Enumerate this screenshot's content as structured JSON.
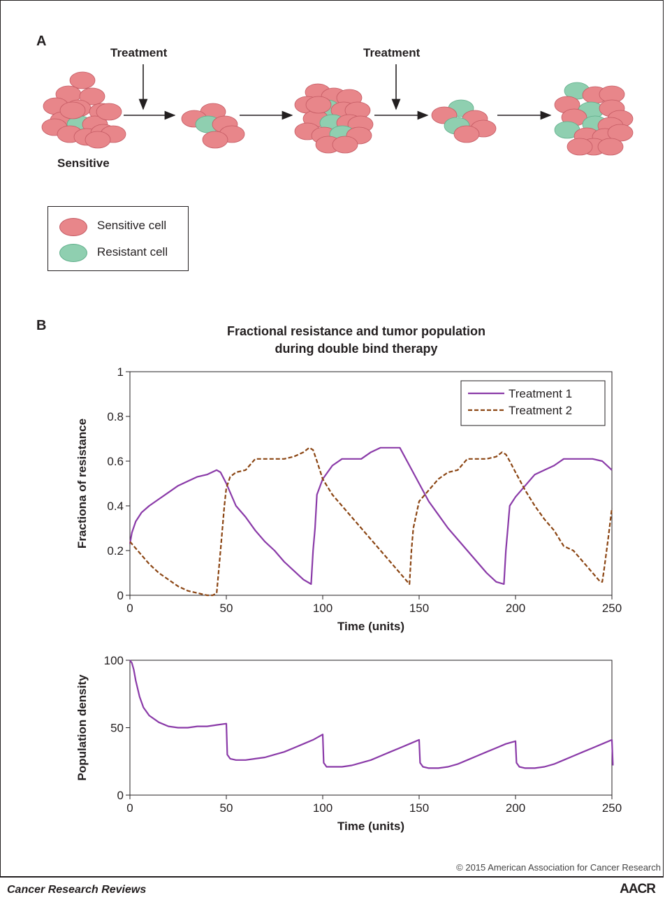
{
  "panel_a": {
    "letter": "A",
    "treatment_label_1": "Treatment",
    "treatment_label_2": "Treatment",
    "sensitive_label": "Sensitive",
    "legend": {
      "sensitive_cell": "Sensitive cell",
      "resistant_cell": "Resistant cell"
    },
    "colors": {
      "sensitive": "#e8868a",
      "resistant": "#8fcfb0",
      "outline": "#c45a63"
    }
  },
  "panel_b": {
    "letter": "B",
    "title_line1": "Fractional resistance and tumor population",
    "title_line2": "during double bind therapy"
  },
  "chart_data": [
    {
      "type": "line",
      "title": "Fractional resistance and tumor population during double bind therapy",
      "xlabel": "Time (units)",
      "ylabel": "Fractiona of resistance",
      "xlim": [
        0,
        250
      ],
      "ylim": [
        0,
        1
      ],
      "xticks": [
        "0",
        "50",
        "100",
        "150",
        "200",
        "250"
      ],
      "yticks": [
        "0",
        "0.2",
        "0.4",
        "0.6",
        "0.8",
        "1"
      ],
      "legend_position": "top-right",
      "series": [
        {
          "name": "Treatment 1",
          "color": "#8a3aa8",
          "style": "solid",
          "x": [
            0,
            1,
            3,
            6,
            10,
            15,
            20,
            25,
            30,
            35,
            40,
            45,
            47,
            50,
            55,
            60,
            65,
            70,
            75,
            80,
            85,
            90,
            94,
            95,
            96,
            97,
            100,
            105,
            110,
            115,
            120,
            125,
            130,
            135,
            140,
            145,
            150,
            155,
            160,
            165,
            170,
            175,
            180,
            185,
            190,
            194,
            195,
            196,
            197,
            200,
            205,
            210,
            215,
            220,
            225,
            230,
            235,
            240,
            245,
            250
          ],
          "y": [
            0.23,
            0.28,
            0.33,
            0.37,
            0.4,
            0.43,
            0.46,
            0.49,
            0.51,
            0.53,
            0.54,
            0.56,
            0.55,
            0.5,
            0.4,
            0.35,
            0.29,
            0.24,
            0.2,
            0.15,
            0.11,
            0.07,
            0.05,
            0.2,
            0.3,
            0.45,
            0.52,
            0.58,
            0.61,
            0.61,
            0.61,
            0.64,
            0.66,
            0.66,
            0.66,
            0.58,
            0.5,
            0.42,
            0.36,
            0.3,
            0.25,
            0.2,
            0.15,
            0.1,
            0.06,
            0.05,
            0.2,
            0.3,
            0.4,
            0.44,
            0.49,
            0.54,
            0.56,
            0.58,
            0.61,
            0.61,
            0.61,
            0.61,
            0.6,
            0.56
          ]
        },
        {
          "name": "Treatment 2",
          "color": "#8b4513",
          "style": "dashed",
          "x": [
            0,
            5,
            10,
            15,
            20,
            25,
            30,
            35,
            40,
            43,
            45,
            47,
            49,
            50,
            52,
            55,
            60,
            65,
            70,
            75,
            80,
            85,
            90,
            93,
            95,
            97,
            100,
            105,
            110,
            115,
            120,
            125,
            130,
            135,
            140,
            144,
            145,
            146,
            147,
            150,
            155,
            160,
            165,
            170,
            175,
            180,
            185,
            190,
            193,
            195,
            197,
            200,
            205,
            210,
            215,
            220,
            225,
            230,
            235,
            240,
            244,
            245,
            246,
            248,
            250
          ],
          "y": [
            0.24,
            0.19,
            0.14,
            0.1,
            0.07,
            0.04,
            0.02,
            0.01,
            0.0,
            0.0,
            0.01,
            0.2,
            0.4,
            0.48,
            0.53,
            0.55,
            0.56,
            0.61,
            0.61,
            0.61,
            0.61,
            0.62,
            0.64,
            0.66,
            0.65,
            0.6,
            0.52,
            0.45,
            0.4,
            0.35,
            0.3,
            0.25,
            0.2,
            0.15,
            0.1,
            0.06,
            0.05,
            0.2,
            0.3,
            0.42,
            0.47,
            0.52,
            0.55,
            0.56,
            0.61,
            0.61,
            0.61,
            0.62,
            0.64,
            0.63,
            0.6,
            0.55,
            0.47,
            0.4,
            0.34,
            0.29,
            0.22,
            0.2,
            0.15,
            0.1,
            0.06,
            0.06,
            0.12,
            0.25,
            0.39
          ]
        }
      ]
    },
    {
      "type": "line",
      "xlabel": "Time (units)",
      "ylabel": "Population density",
      "xlim": [
        0,
        250
      ],
      "ylim": [
        0,
        100
      ],
      "xticks": [
        "0",
        "50",
        "100",
        "150",
        "200",
        "250"
      ],
      "yticks": [
        "0",
        "50",
        "100"
      ],
      "series": [
        {
          "color": "#8a3aa8",
          "style": "solid",
          "x": [
            0,
            1,
            2,
            3,
            5,
            7,
            10,
            15,
            20,
            25,
            30,
            35,
            40,
            45,
            50,
            50.5,
            52,
            55,
            60,
            65,
            70,
            75,
            80,
            85,
            90,
            95,
            100,
            100.5,
            102,
            105,
            110,
            115,
            120,
            125,
            130,
            135,
            140,
            145,
            150,
            150.5,
            152,
            155,
            160,
            165,
            170,
            175,
            180,
            185,
            190,
            195,
            200,
            200.5,
            202,
            205,
            210,
            215,
            220,
            225,
            230,
            235,
            240,
            245,
            250,
            250.5
          ],
          "y": [
            100,
            98,
            93,
            85,
            73,
            65,
            59,
            54,
            51,
            50,
            50,
            51,
            51,
            52,
            53,
            30,
            27,
            26,
            26,
            27,
            28,
            30,
            32,
            35,
            38,
            41,
            45,
            24,
            21,
            21,
            21,
            22,
            24,
            26,
            29,
            32,
            35,
            38,
            41,
            24,
            21,
            20,
            20,
            21,
            23,
            26,
            29,
            32,
            35,
            38,
            40,
            24,
            21,
            20,
            20,
            21,
            23,
            26,
            29,
            32,
            35,
            38,
            41,
            22
          ]
        }
      ]
    }
  ],
  "footer": {
    "copyright": "© 2015 American Association for Cancer Research",
    "journal": "Cancer Research Reviews",
    "logo": "AACR"
  }
}
